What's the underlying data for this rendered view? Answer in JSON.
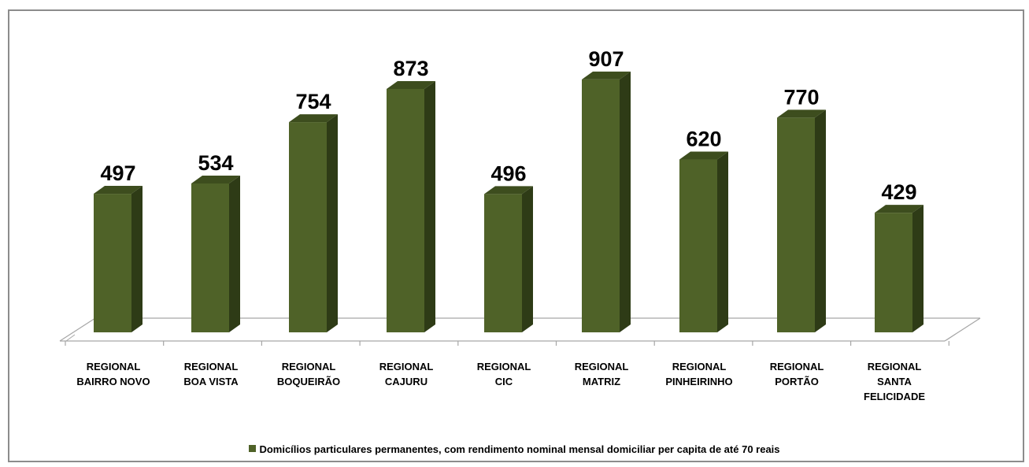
{
  "chart_data": {
    "type": "bar",
    "three_d": true,
    "title": "",
    "xlabel": "",
    "ylabel": "",
    "ylim": [
      0,
      1000
    ],
    "grid": false,
    "legend_position": "bottom",
    "categories": [
      "REGIONAL BAIRRO NOVO",
      "REGIONAL BOA VISTA",
      "REGIONAL BOQUEIRÃO",
      "REGIONAL CAJURU",
      "REGIONAL CIC",
      "REGIONAL MATRIZ",
      "REGIONAL PINHEIRINHO",
      "REGIONAL PORTÃO",
      "REGIONAL SANTA FELICIDADE"
    ],
    "series": [
      {
        "name": "Domicílios particulares permanentes, com rendimento nominal mensal domiciliar per capita de até 70 reais",
        "values": [
          497,
          534,
          754,
          873,
          496,
          907,
          620,
          770,
          429
        ],
        "data_labels": [
          "497",
          "534",
          "754",
          "873",
          "496",
          "907",
          "620",
          "770",
          "429"
        ],
        "color": "#4f6228"
      }
    ],
    "colors": {
      "bar_front": "#4f6228",
      "bar_side": "#2e3b16",
      "bar_top": "#3d4d1e",
      "axis": "#a6a6a6",
      "border": "#8c8c8c"
    }
  }
}
